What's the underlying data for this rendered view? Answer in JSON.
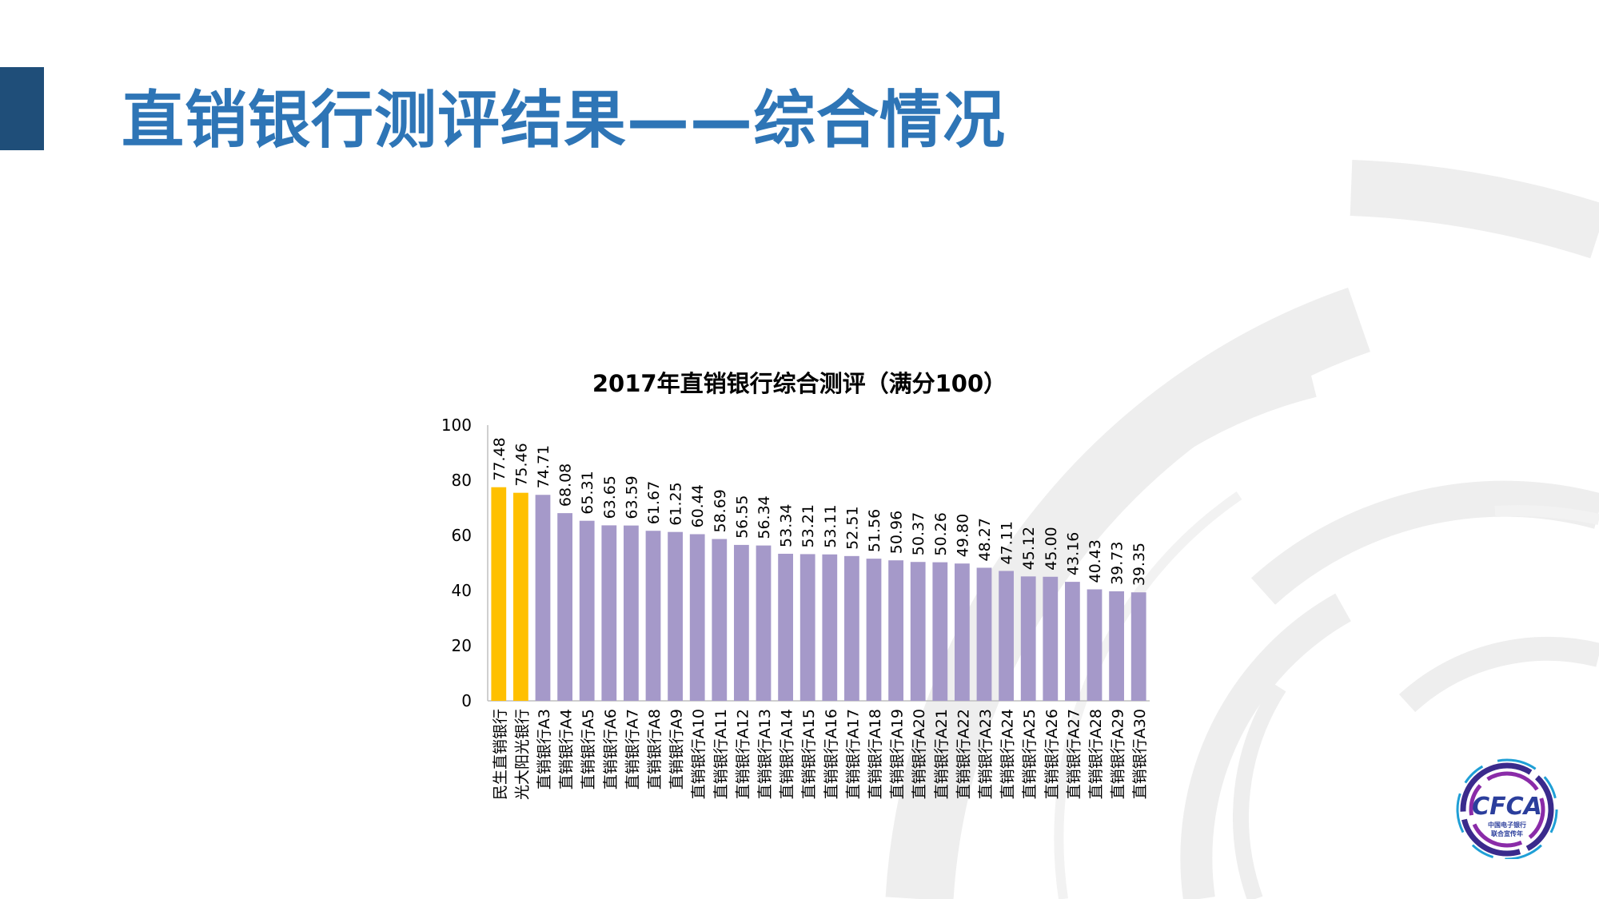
{
  "slide": {
    "title": "直销银行测评结果——综合情况"
  },
  "logo": {
    "text": "CFCA",
    "line1": "中国电子银行",
    "line2": "联合宣传年"
  },
  "colors": {
    "title": "#2e75b6",
    "accent_bar": "#1f4e79",
    "highlight_bar": "#ffc000",
    "bar": "#a599c9",
    "axis": "#bfbfbf"
  },
  "chart_data": {
    "type": "bar",
    "title": "2017年直销银行综合测评（满分100）",
    "xlabel": "",
    "ylabel": "",
    "ylim": [
      0,
      100
    ],
    "yticks": [
      0,
      20,
      40,
      60,
      80,
      100
    ],
    "grid": false,
    "legend": "none",
    "highlighted_categories": [
      "民生直销银行",
      "光大阳光银行"
    ],
    "categories": [
      "民生直销银行",
      "光大阳光银行",
      "直销银行A3",
      "直销银行A4",
      "直销银行A5",
      "直销银行A6",
      "直销银行A7",
      "直销银行A8",
      "直销银行A9",
      "直销银行A10",
      "直销银行A11",
      "直销银行A12",
      "直销银行A13",
      "直销银行A14",
      "直销银行A15",
      "直销银行A16",
      "直销银行A17",
      "直销银行A18",
      "直销银行A19",
      "直销银行A20",
      "直销银行A21",
      "直销银行A22",
      "直销银行A23",
      "直销银行A24",
      "直销银行A25",
      "直销银行A26",
      "直销银行A27",
      "直销银行A28",
      "直销银行A29",
      "直销银行A30"
    ],
    "values": [
      77.48,
      75.46,
      74.71,
      68.08,
      65.31,
      63.65,
      63.59,
      61.67,
      61.25,
      60.44,
      58.69,
      56.55,
      56.34,
      53.34,
      53.21,
      53.11,
      52.51,
      51.56,
      50.96,
      50.37,
      50.26,
      49.8,
      48.27,
      47.11,
      45.12,
      45.0,
      43.16,
      40.43,
      39.73,
      39.35
    ],
    "value_labels": [
      "77.48",
      "75.46",
      "74.71",
      "68.08",
      "65.31",
      "63.65",
      "63.59",
      "61.67",
      "61.25",
      "60.44",
      "58.69",
      "56.55",
      "56.34",
      "53.34",
      "53.21",
      "53.11",
      "52.51",
      "51.56",
      "50.96",
      "50.37",
      "50.26",
      "49.80",
      "48.27",
      "47.11",
      "45.12",
      "45.00",
      "43.16",
      "40.43",
      "39.73",
      "39.35"
    ]
  }
}
